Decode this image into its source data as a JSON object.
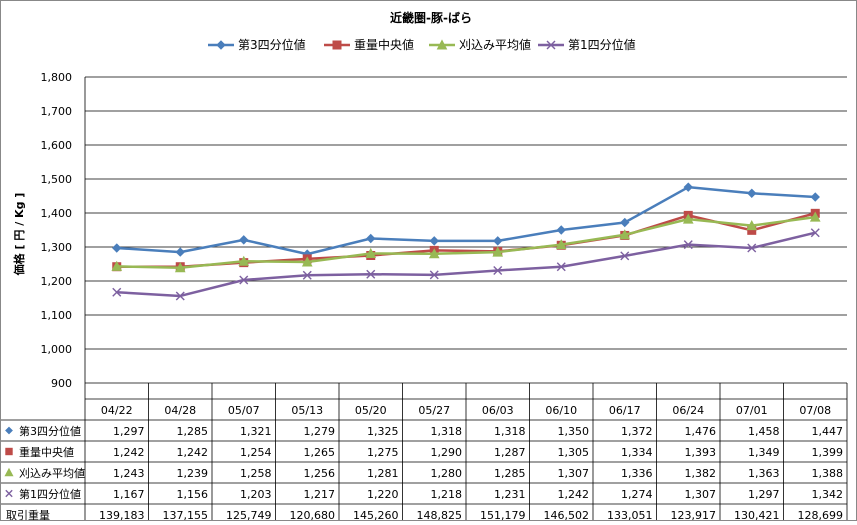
{
  "chart_data": {
    "type": "line",
    "title": "近畿圏-豚-ばら",
    "ylabel": "価格 [ 円 / Kg ]",
    "ylim": [
      900,
      1800
    ],
    "ytick_step": 100,
    "grid": true,
    "legend_position": "top",
    "categories": [
      "04/22",
      "04/28",
      "05/07",
      "05/13",
      "05/20",
      "05/27",
      "06/03",
      "06/10",
      "06/17",
      "06/24",
      "07/01",
      "07/08"
    ],
    "series": [
      {
        "name": "第3四分位値",
        "color": "#4A7EBB",
        "marker": "diamond",
        "values": [
          1297,
          1285,
          1321,
          1279,
          1325,
          1318,
          1318,
          1350,
          1372,
          1476,
          1458,
          1447
        ]
      },
      {
        "name": "重量中央値",
        "color": "#BE4B48",
        "marker": "square",
        "values": [
          1242,
          1242,
          1254,
          1265,
          1275,
          1290,
          1287,
          1305,
          1334,
          1393,
          1349,
          1399
        ]
      },
      {
        "name": "刈込み平均値",
        "color": "#98B954",
        "marker": "triangle",
        "values": [
          1243,
          1239,
          1258,
          1256,
          1281,
          1280,
          1285,
          1307,
          1336,
          1382,
          1363,
          1388
        ]
      },
      {
        "name": "第1四分位値",
        "color": "#7D60A0",
        "marker": "x",
        "values": [
          1167,
          1156,
          1203,
          1217,
          1220,
          1218,
          1231,
          1242,
          1274,
          1307,
          1297,
          1342
        ]
      }
    ],
    "table_extra_row": {
      "name": "取引重量",
      "values": [
        139183,
        137155,
        125749,
        120680,
        145260,
        148825,
        151179,
        146502,
        133051,
        123917,
        130421,
        128699
      ]
    }
  }
}
